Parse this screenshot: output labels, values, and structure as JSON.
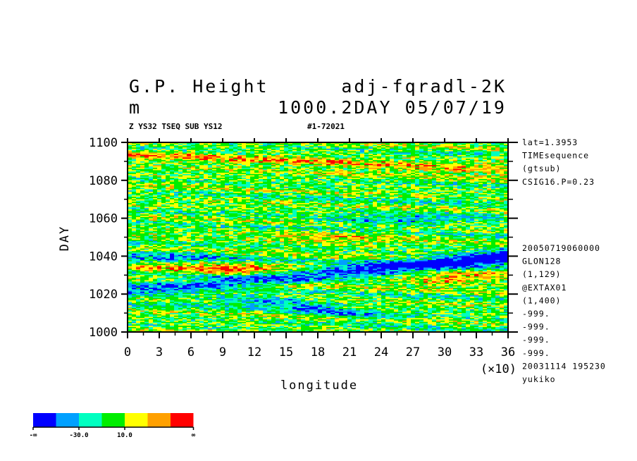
{
  "header": {
    "title_left": "G.P. Height",
    "title_right": "adj-fqradl-2K",
    "unit": "m",
    "subtitle_right": "1000.2DAY 05/07/19",
    "info_left": "Z YS32 TSEQ SUB YS12",
    "info_right": "#1-72021"
  },
  "side_info": {
    "top": [
      "lat=1.3953",
      "TIMEsequence",
      "(gtsub)",
      "CSIG16.P=0.23"
    ],
    "bottom": [
      "20050719060000",
      "GLON128",
      "(1,129)",
      "@EXTAX01",
      "(1,400)",
      "-999.",
      "-999.",
      "-999.",
      "-999.",
      "20031114 195230",
      "yukiko"
    ]
  },
  "colorbar": {
    "colors": [
      "#0000ff",
      "#00a0ff",
      "#00ffc0",
      "#00ee00",
      "#ffff00",
      "#ffa000",
      "#ff0000"
    ],
    "labels": [
      "-∞",
      "-30.0",
      "10.0",
      "∞"
    ]
  },
  "chart_data": {
    "type": "heatmap",
    "title": "G.P. Height",
    "xlabel": "longitude",
    "ylabel": "DAY",
    "x_multiplier": "(×10)",
    "x_ticks": [
      "0",
      "3",
      "6",
      "9",
      "12",
      "15",
      "18",
      "21",
      "24",
      "27",
      "30",
      "33",
      "36"
    ],
    "y_ticks": [
      "1000",
      "1020",
      "1040",
      "1060",
      "1080",
      "1100"
    ],
    "xlim": [
      0,
      360
    ],
    "ylim": [
      1000,
      1100
    ],
    "levels": [
      -30.0,
      10.0
    ]
  }
}
